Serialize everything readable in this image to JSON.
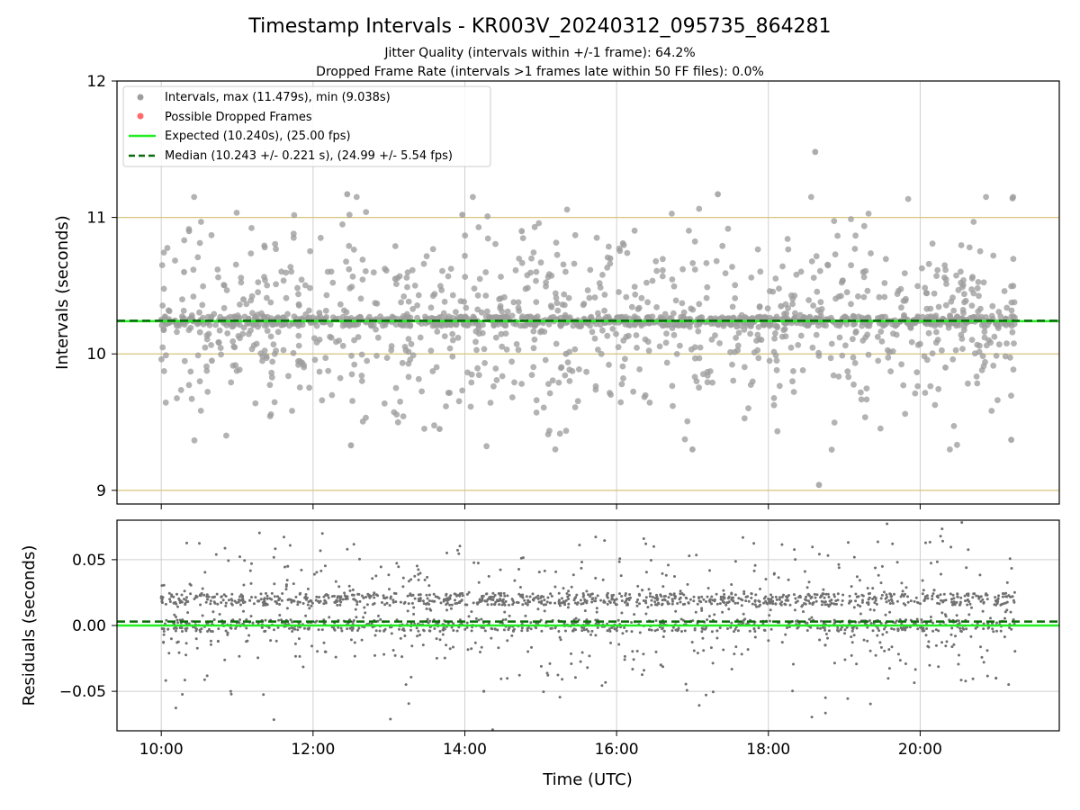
{
  "chart_data": [
    {
      "type": "scatter",
      "title": "Timestamp Intervals - KR003V_20240312_095735_864281",
      "subtitle_lines": [
        "Jitter Quality (intervals within +/-1 frame): 64.2%",
        "Dropped Frame Rate (intervals >1 frames late within 50 FF files): 0.0%"
      ],
      "ylabel": "Intervals (seconds)",
      "xlim": [
        "09:25",
        "21:50"
      ],
      "ylim": [
        8.9,
        12.0
      ],
      "xticks": [
        "10:00",
        "12:00",
        "14:00",
        "16:00",
        "18:00",
        "20:00"
      ],
      "yticks": [
        "9",
        "10",
        "11",
        "12"
      ],
      "reference_lines_y": [
        9,
        10,
        11
      ],
      "grid": "x",
      "legend_position": "top-left",
      "legend": [
        "Intervals, max (11.479s), min (9.038s)",
        "Possible Dropped Frames",
        "Expected (10.240s), (25.00 fps)",
        "Median (10.243 +/- 0.221 s), (24.99 +/- 5.54 fps)"
      ],
      "expected_interval": 10.24,
      "median_interval": 10.243,
      "interval_max": 11.479,
      "interval_min": 9.038,
      "time_range": [
        "10:00",
        "21:15"
      ],
      "marker_color": "#9e9e9e",
      "dropped_color": "#ff6b6b",
      "expected_color": "#22ee22",
      "median_color": "#0a6b0a",
      "reference_line_color": "#d8c57a",
      "dropped_frames": [],
      "series": [
        {
          "x": [
            "10:00",
            "10:18",
            "10:40",
            "11:05",
            "11:35",
            "12:05",
            "12:30",
            "13:05",
            "13:40",
            "14:10",
            "14:45",
            "15:20",
            "15:55",
            "16:30",
            "17:00",
            "17:35",
            "18:10",
            "18:40",
            "19:15",
            "19:50",
            "20:20",
            "20:55",
            "21:12",
            "12:27",
            "13:58",
            "16:05",
            "17:20",
            "18:37",
            "21:13",
            "10:22"
          ],
          "y": [
            10.25,
            10.6,
            9.95,
            10.4,
            10.21,
            10.3,
            9.33,
            10.55,
            9.45,
            10.24,
            10.9,
            10.0,
            10.7,
            10.23,
            9.3,
            10.2,
            10.35,
            9.04,
            10.6,
            10.25,
            9.9,
            10.24,
            9.37,
            11.17,
            11.02,
            10.81,
            11.17,
            11.48,
            11.14,
            10.9
          ]
        }
      ]
    },
    {
      "type": "scatter",
      "xlabel": "Time (UTC)",
      "ylabel": "Residuals (seconds)",
      "xlim": [
        "09:25",
        "21:50"
      ],
      "ylim": [
        -0.08,
        0.08
      ],
      "xticks": [
        "10:00",
        "12:00",
        "14:00",
        "16:00",
        "18:00",
        "20:00"
      ],
      "yticks": [
        "0.05",
        "0.00",
        "−0.05"
      ],
      "grid": "both",
      "expected_residual": 0.0,
      "median_residual": 0.003,
      "marker_color": "#707070",
      "expected_color": "#22ee22",
      "median_color": "#0a6b0a",
      "series": [
        {
          "x": [
            "10:00",
            "10:20",
            "10:45",
            "11:10",
            "11:40",
            "12:10",
            "12:40",
            "13:10",
            "13:45",
            "14:15",
            "14:50",
            "15:25",
            "16:00",
            "16:35",
            "17:05",
            "17:40",
            "18:15",
            "18:45",
            "19:20",
            "19:55",
            "20:25",
            "21:00",
            "21:13"
          ],
          "y": [
            0.021,
            0.002,
            -0.012,
            0.019,
            0.045,
            -0.02,
            0.021,
            0.0,
            0.02,
            -0.05,
            0.019,
            0.001,
            0.02,
            -0.03,
            0.021,
            0.002,
            0.019,
            -0.015,
            0.021,
            0.001,
            0.02,
            -0.04,
            0.022
          ]
        }
      ]
    }
  ]
}
